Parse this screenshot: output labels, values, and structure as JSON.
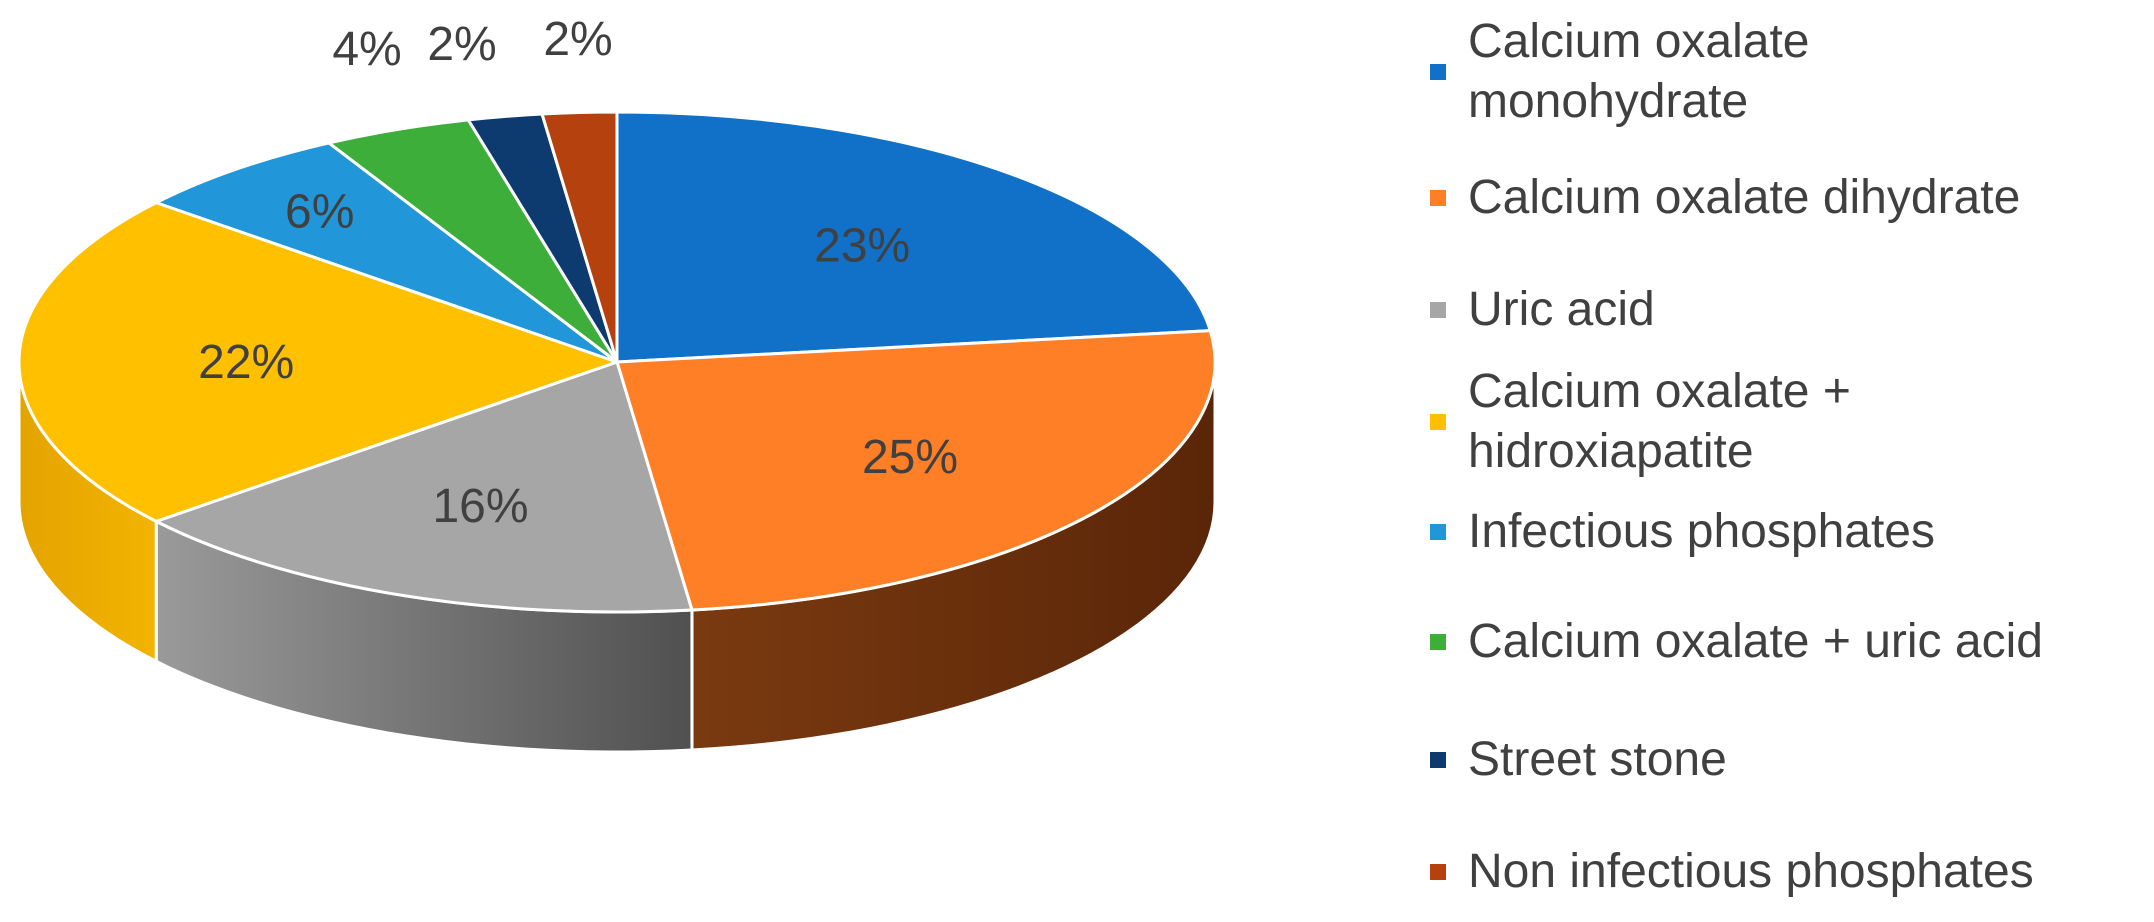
{
  "chart_data": {
    "type": "pie",
    "style": "3d",
    "title": "",
    "start_angle_deg": 0,
    "direction": "clockwise",
    "legend_position": "right",
    "label_color": "#404040",
    "slices": [
      {
        "label": "Calcium oxalate monohydrate",
        "value": 23,
        "value_label": "23%",
        "color": "#1170C8",
        "side_color": "#0B4E8C"
      },
      {
        "label": "Calcium oxalate dihydrate",
        "value": 25,
        "value_label": "25%",
        "color": "#FF7F27",
        "side_color": "#6B2E0E"
      },
      {
        "label": "Uric acid",
        "value": 16,
        "value_label": "16%",
        "color": "#A6A6A6",
        "side_color": "#6A6A6A"
      },
      {
        "label": "Calcium oxalate + hidroxiapatite",
        "value": 22,
        "value_label": "22%",
        "color": "#FFC000",
        "side_color": "#E0A000"
      },
      {
        "label": "Infectious phosphates",
        "value": 6,
        "value_label": "6%",
        "color": "#2196D9",
        "side_color": "#17699A"
      },
      {
        "label": "Calcium oxalate + uric acid",
        "value": 4,
        "value_label": "4%",
        "color": "#3DAE3A",
        "side_color": "#2A7A28"
      },
      {
        "label": "Street stone",
        "value": 2,
        "value_label": "2%",
        "color": "#0D3B70",
        "side_color": "#082848"
      },
      {
        "label": "Non infectious phosphates",
        "value": 2,
        "value_label": "2%",
        "color": "#B5420E",
        "side_color": "#7A2C09"
      }
    ]
  },
  "legend": {
    "items": [
      {
        "label": "Calcium oxalate monohydrate",
        "color": "#1170C8"
      },
      {
        "label": "Calcium oxalate dihydrate",
        "color": "#FF7F27"
      },
      {
        "label": "Uric acid",
        "color": "#A6A6A6"
      },
      {
        "label": "Calcium oxalate + hidroxiapatite",
        "color": "#FFC000"
      },
      {
        "label": "Infectious phosphates",
        "color": "#2196D9"
      },
      {
        "label": "Calcium oxalate + uric acid",
        "color": "#3DAE3A"
      },
      {
        "label": "Street stone",
        "color": "#0D3B70"
      },
      {
        "label": "Non infectious phosphates",
        "color": "#B5420E"
      }
    ]
  }
}
